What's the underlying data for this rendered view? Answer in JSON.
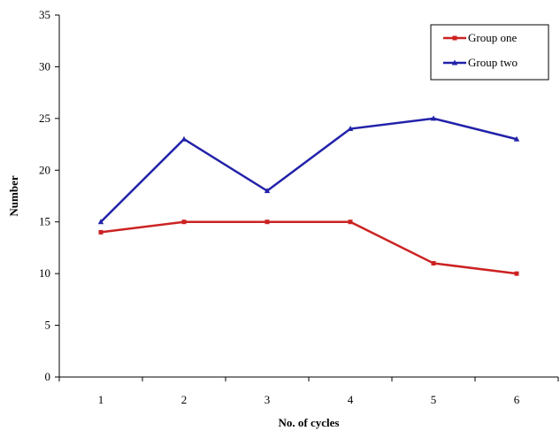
{
  "chart_data": {
    "type": "line",
    "xlabel": "No. of cycles",
    "ylabel": "Number",
    "categories": [
      "1",
      "2",
      "3",
      "4",
      "5",
      "6"
    ],
    "ylim": [
      0,
      35
    ],
    "yticks": [
      "0",
      "5",
      "10",
      "15",
      "20",
      "25",
      "30",
      "35"
    ],
    "grid": false,
    "legend_position": "top-right",
    "series": [
      {
        "name": "Group one",
        "values": [
          14,
          15,
          15,
          15,
          11,
          10
        ],
        "color": "#cc2222",
        "marker": "square"
      },
      {
        "name": "Group two",
        "values": [
          15,
          23,
          18,
          24,
          25,
          23
        ],
        "color": "#2222aa",
        "marker": "triangle"
      }
    ]
  }
}
